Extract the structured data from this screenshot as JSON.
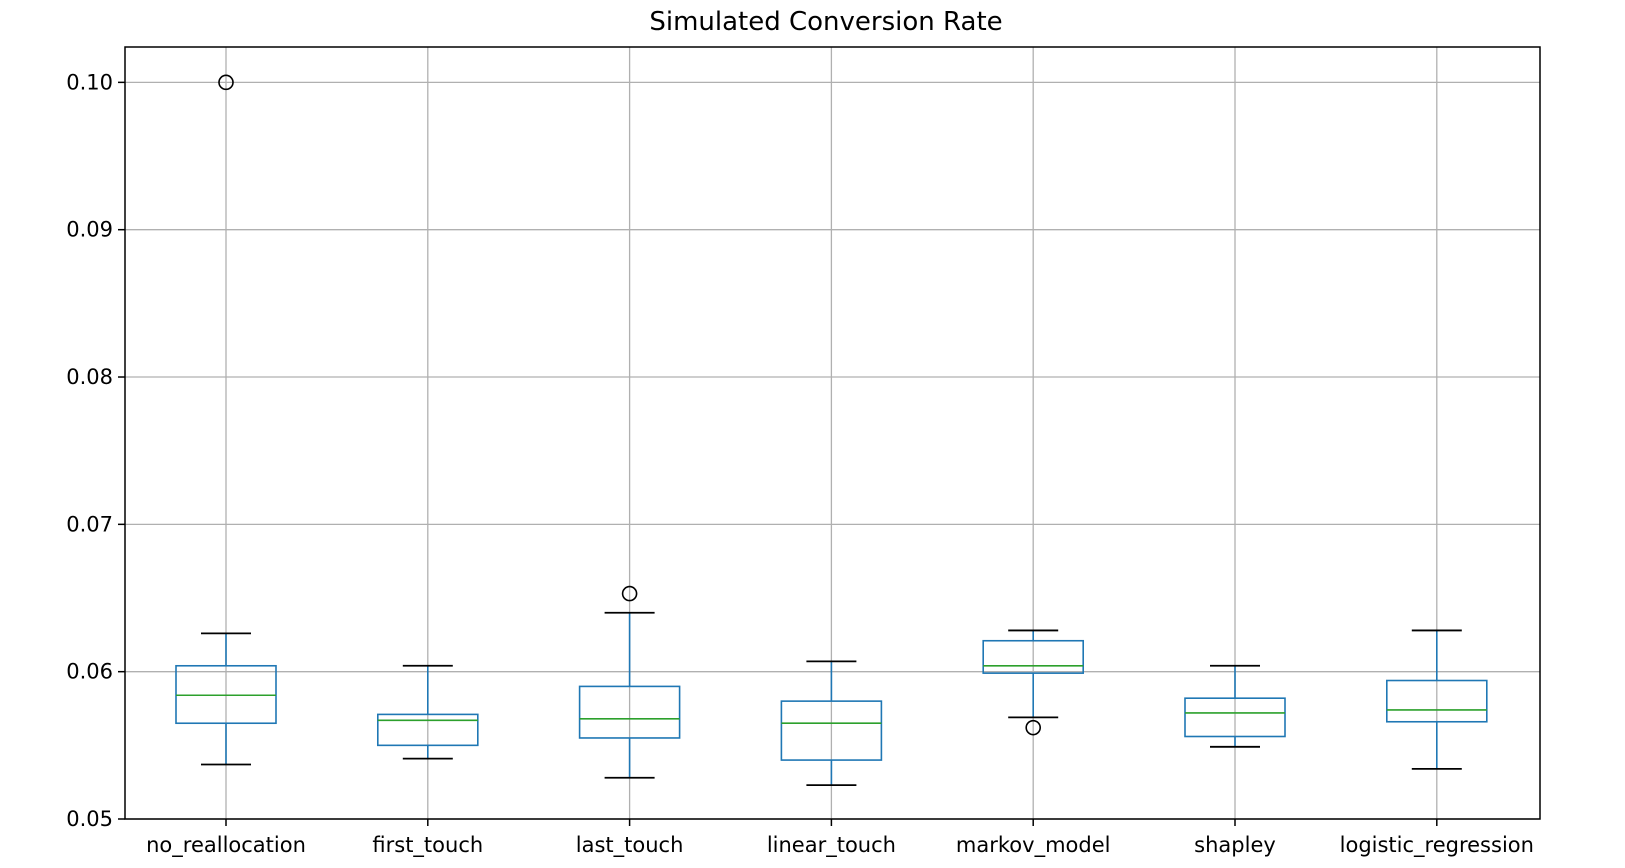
{
  "chart_data": {
    "type": "boxplot",
    "title": "Simulated Conversion Rate",
    "xlabel": "",
    "ylabel": "",
    "ylim": [
      0.05,
      0.1024
    ],
    "yticks": [
      0.05,
      0.06,
      0.07,
      0.08,
      0.09,
      0.1
    ],
    "ytick_labels": [
      "0.05",
      "0.06",
      "0.07",
      "0.08",
      "0.09",
      "0.10"
    ],
    "grid": true,
    "categories": [
      "no_reallocation",
      "first_touch",
      "last_touch",
      "linear_touch",
      "markov_model",
      "shapley",
      "logistic_regression"
    ],
    "colors": {
      "box": "#1f77b4",
      "median": "#2ca02c",
      "whisker_cap": "#000000",
      "flier": "#000000",
      "grid": "#b0b0b0"
    },
    "boxes": [
      {
        "name": "no_reallocation",
        "whislo": 0.0537,
        "q1": 0.0565,
        "med": 0.0584,
        "q3": 0.0604,
        "whishi": 0.0626,
        "fliers": [
          0.1
        ]
      },
      {
        "name": "first_touch",
        "whislo": 0.0541,
        "q1": 0.055,
        "med": 0.0567,
        "q3": 0.0571,
        "whishi": 0.0604,
        "fliers": []
      },
      {
        "name": "last_touch",
        "whislo": 0.0528,
        "q1": 0.0555,
        "med": 0.0568,
        "q3": 0.059,
        "whishi": 0.064,
        "fliers": [
          0.0653
        ]
      },
      {
        "name": "linear_touch",
        "whislo": 0.0523,
        "q1": 0.054,
        "med": 0.0565,
        "q3": 0.058,
        "whishi": 0.0607,
        "fliers": []
      },
      {
        "name": "markov_model",
        "whislo": 0.0569,
        "q1": 0.0599,
        "med": 0.0604,
        "q3": 0.0621,
        "whishi": 0.0628,
        "fliers": [
          0.0562
        ]
      },
      {
        "name": "shapley",
        "whislo": 0.0549,
        "q1": 0.0556,
        "med": 0.0572,
        "q3": 0.0582,
        "whishi": 0.0604,
        "fliers": []
      },
      {
        "name": "logistic_regression",
        "whislo": 0.0534,
        "q1": 0.0566,
        "med": 0.0574,
        "q3": 0.0594,
        "whishi": 0.0628,
        "fliers": []
      }
    ]
  }
}
